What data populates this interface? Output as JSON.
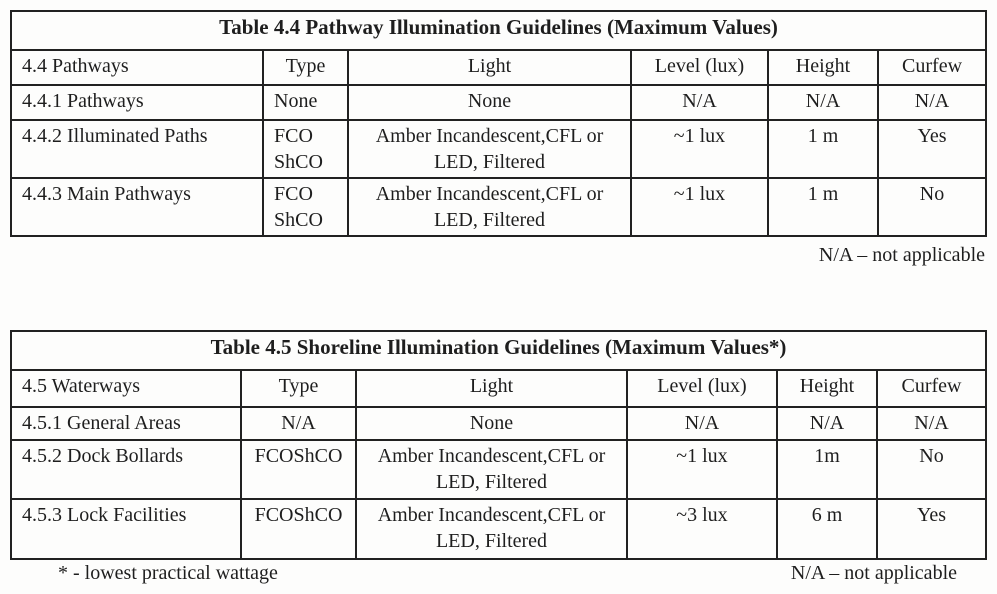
{
  "page": {
    "background_color": "#fdfdfc",
    "text_color": "#1e1e1e",
    "border_color": "#212121"
  },
  "table_44": {
    "title": "Table 4.4 Pathway Illumination Guidelines (Maximum Values)",
    "columns": [
      "4.4 Pathways",
      "Type",
      "Light",
      "Level (lux)",
      "Height",
      "Curfew"
    ],
    "rows": [
      {
        "label": "4.4.1 Pathways",
        "type": [
          "None"
        ],
        "light": [
          "None"
        ],
        "level": "N/A",
        "height": "N/A",
        "curfew": "N/A"
      },
      {
        "label": "4.4.2 Illuminated Paths",
        "type": [
          "FCO",
          "ShCO"
        ],
        "light": [
          "Amber Incandescent,",
          "CFL or LED, Filtered"
        ],
        "level": "~1 lux",
        "height": "1 m",
        "curfew": "Yes"
      },
      {
        "label": "4.4.3 Main Pathways",
        "type": [
          "FCO",
          "ShCO"
        ],
        "light": [
          "Amber Incandescent,",
          "CFL or LED, Filtered"
        ],
        "level": "~1 lux",
        "height": "1 m",
        "curfew": "No"
      }
    ],
    "footnote": "N/A – not applicable"
  },
  "table_45": {
    "title": "Table 4.5 Shoreline Illumination Guidelines (Maximum Values*)",
    "columns": [
      "4.5 Waterways",
      "Type",
      "Light",
      "Level (lux)",
      "Height",
      "Curfew"
    ],
    "rows": [
      {
        "label": "4.5.1 General Areas",
        "type": [
          "N/A"
        ],
        "light": [
          "None"
        ],
        "level": "N/A",
        "height": "N/A",
        "curfew": "N/A"
      },
      {
        "label": "4.5.2 Dock Bollards",
        "type": [
          "FCO",
          "ShCO"
        ],
        "light": [
          "Amber Incandescent,",
          "CFL or LED, Filtered"
        ],
        "level": "~1 lux",
        "height": "1m",
        "curfew": "No"
      },
      {
        "label": "4.5.3 Lock Facilities",
        "type": [
          "FCO",
          "ShCO"
        ],
        "light": [
          "Amber Incandescent,",
          "CFL or LED, Filtered"
        ],
        "level": "~3 lux",
        "height": "6 m",
        "curfew": "Yes"
      }
    ],
    "footnote_left": "* - lowest practical wattage",
    "footnote_right": "N/A – not applicable"
  }
}
